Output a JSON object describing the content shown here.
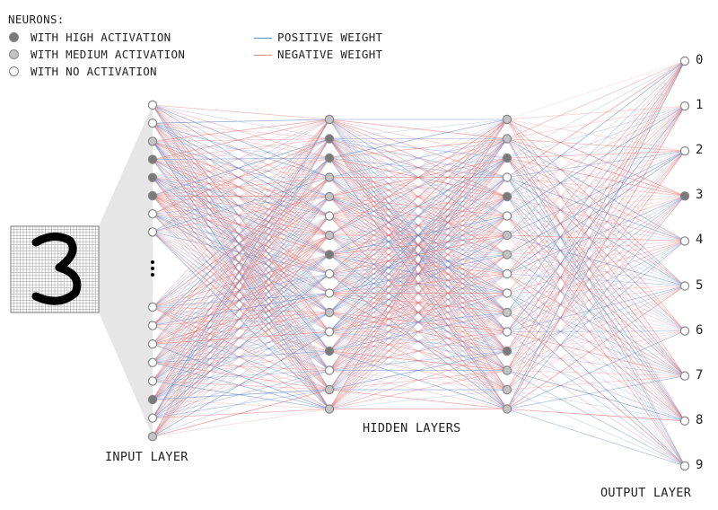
{
  "legend": {
    "title": "NEURONS:",
    "high": "WITH HIGH ACTIVATION",
    "medium": "WITH MEDIUM ACTIVATION",
    "none": "WITH NO ACTIVATION",
    "positive": "POSITIVE WEIGHT",
    "negative": "NEGATIVE WEIGHT"
  },
  "colors": {
    "high": "#7a7a7a",
    "medium": "#c4c4c4",
    "none": "#ffffff",
    "positive": "#5b7fc0",
    "negative": "#e06a6a",
    "funnel": "#e6e6e6"
  },
  "input_digit": "3",
  "labels": {
    "input_layer": "INPUT LAYER",
    "hidden_layers": "HIDDEN LAYERS",
    "output_layer": "OUTPUT LAYER"
  },
  "layers": {
    "input_top": [
      "none",
      "none",
      "medium",
      "high",
      "high",
      "high",
      "none",
      "none"
    ],
    "input_bottom": [
      "none",
      "none",
      "none",
      "none",
      "none",
      "high",
      "none",
      "medium"
    ],
    "hidden1": [
      "medium",
      "high",
      "high",
      "medium",
      "medium",
      "none",
      "medium",
      "high",
      "none",
      "none",
      "medium",
      "none",
      "high",
      "none",
      "medium",
      "medium"
    ],
    "hidden2": [
      "medium",
      "medium",
      "high",
      "none",
      "high",
      "none",
      "medium",
      "medium",
      "none",
      "none",
      "medium",
      "none",
      "high",
      "medium",
      "medium",
      "medium"
    ],
    "output": [
      {
        "label": "0",
        "activation": "none"
      },
      {
        "label": "1",
        "activation": "none"
      },
      {
        "label": "2",
        "activation": "none"
      },
      {
        "label": "3",
        "activation": "high"
      },
      {
        "label": "4",
        "activation": "none"
      },
      {
        "label": "5",
        "activation": "none"
      },
      {
        "label": "6",
        "activation": "none"
      },
      {
        "label": "7",
        "activation": "none"
      },
      {
        "label": "8",
        "activation": "none"
      },
      {
        "label": "9",
        "activation": "none"
      }
    ]
  }
}
